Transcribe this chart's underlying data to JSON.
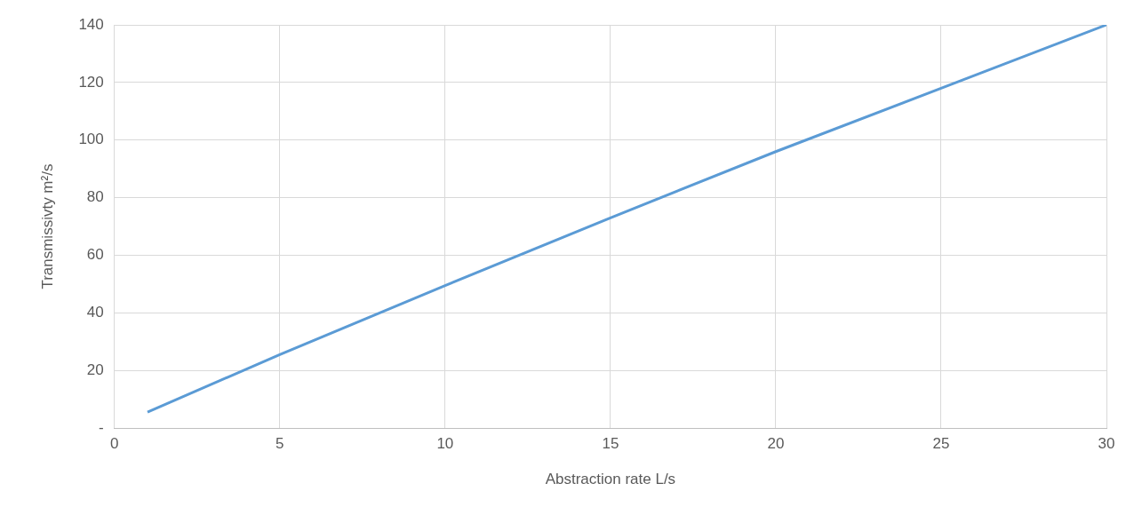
{
  "chart_data": {
    "type": "line",
    "xlabel": "Abstraction rate L/s",
    "ylabel": "Transmissivty m²/s",
    "x": [
      1,
      5,
      10,
      15,
      20,
      25,
      30
    ],
    "series": [
      {
        "color": "#5b9bd5",
        "values": [
          5.6,
          25.5,
          49.5,
          73,
          96,
          118,
          140
        ]
      }
    ],
    "xlim": [
      0,
      30
    ],
    "xticks": [
      0,
      5,
      10,
      15,
      20,
      25,
      30
    ],
    "ylim": [
      0,
      140
    ],
    "yticks": [
      {
        "value": 0,
        "label": "-"
      },
      20,
      40,
      60,
      80,
      100,
      120,
      140
    ],
    "grid": true,
    "legend": false,
    "marker": "none",
    "line_style": "solid"
  }
}
